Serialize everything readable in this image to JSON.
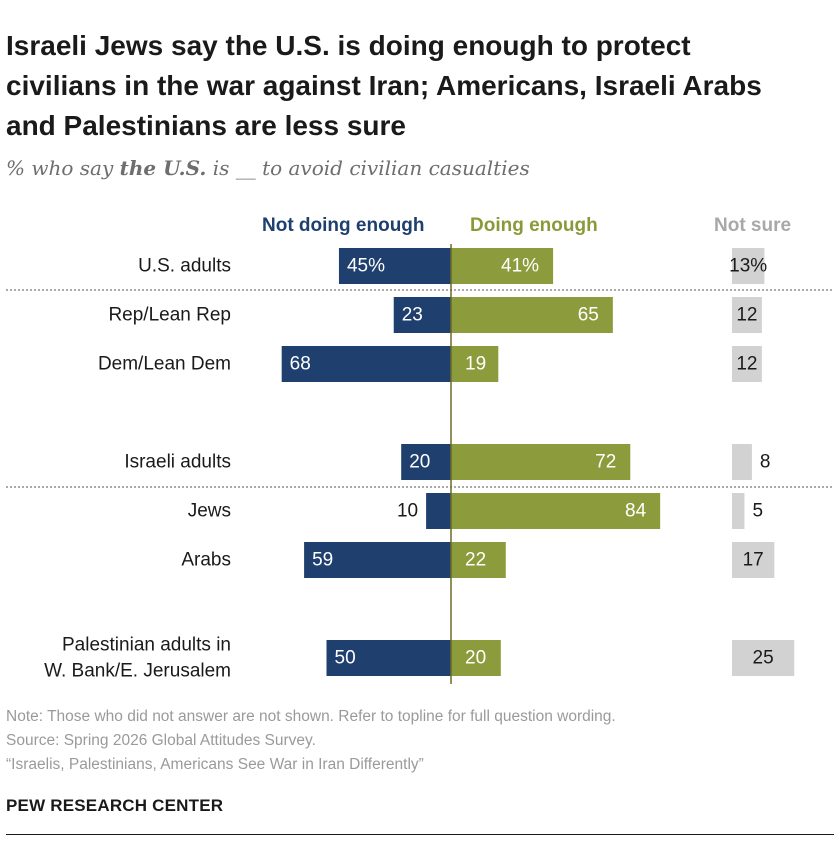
{
  "title": "Israeli Jews say the U.S. is doing enough to protect civilians in the war against Iran; Americans, Israeli Arabs and Palestinians are less sure",
  "subtitle": {
    "prefix": "% who say ",
    "emphasis": "the U.S.",
    "suffix": " is __ to avoid civilian casualties"
  },
  "colors": {
    "not_doing": "#1f3f6e",
    "doing": "#8c9c3c",
    "not_sure": "#d2d2d2",
    "axis": "#6b6b2a"
  },
  "chart_data": {
    "type": "bar",
    "series": [
      {
        "name": "Not doing enough",
        "values": [
          45,
          23,
          68,
          20,
          10,
          59,
          50
        ]
      },
      {
        "name": "Doing enough",
        "values": [
          41,
          65,
          19,
          72,
          84,
          22,
          20
        ]
      },
      {
        "name": "Not sure",
        "values": [
          13,
          12,
          12,
          8,
          5,
          17,
          25
        ]
      }
    ],
    "categories": [
      "U.S. adults",
      "Rep/Lean Rep",
      "Dem/Lean Dem",
      "Israeli adults",
      "Jews",
      "Arabs",
      "Palestinian adults in W. Bank/E. Jerusalem"
    ],
    "category_lines": [
      [
        "U.S. adults"
      ],
      [
        "Rep/Lean Rep"
      ],
      [
        "Dem/Lean Dem"
      ],
      [
        "Israeli adults"
      ],
      [
        "Jews"
      ],
      [
        "Arabs"
      ],
      [
        "Palestinian adults in",
        "W. Bank/E. Jerusalem"
      ]
    ],
    "labels": {
      "not_doing": [
        "45%",
        "23",
        "68",
        "20",
        "10",
        "59",
        "50"
      ],
      "doing": [
        "41%",
        "65",
        "19",
        "72",
        "84",
        "22",
        "20"
      ],
      "not_sure": [
        "13%",
        "12",
        "12",
        "8",
        "5",
        "17",
        "25"
      ]
    },
    "dotted_separator_after": [
      "U.S. adults",
      "Israeli adults"
    ]
  },
  "notes": {
    "note": "Note: Those who did not answer are not shown. Refer to topline for full question wording.",
    "source": "Source: Spring 2026 Global Attitudes Survey.",
    "report": "“Israelis, Palestinians, Americans See War in Iran Differently”"
  },
  "brand": "PEW RESEARCH CENTER"
}
